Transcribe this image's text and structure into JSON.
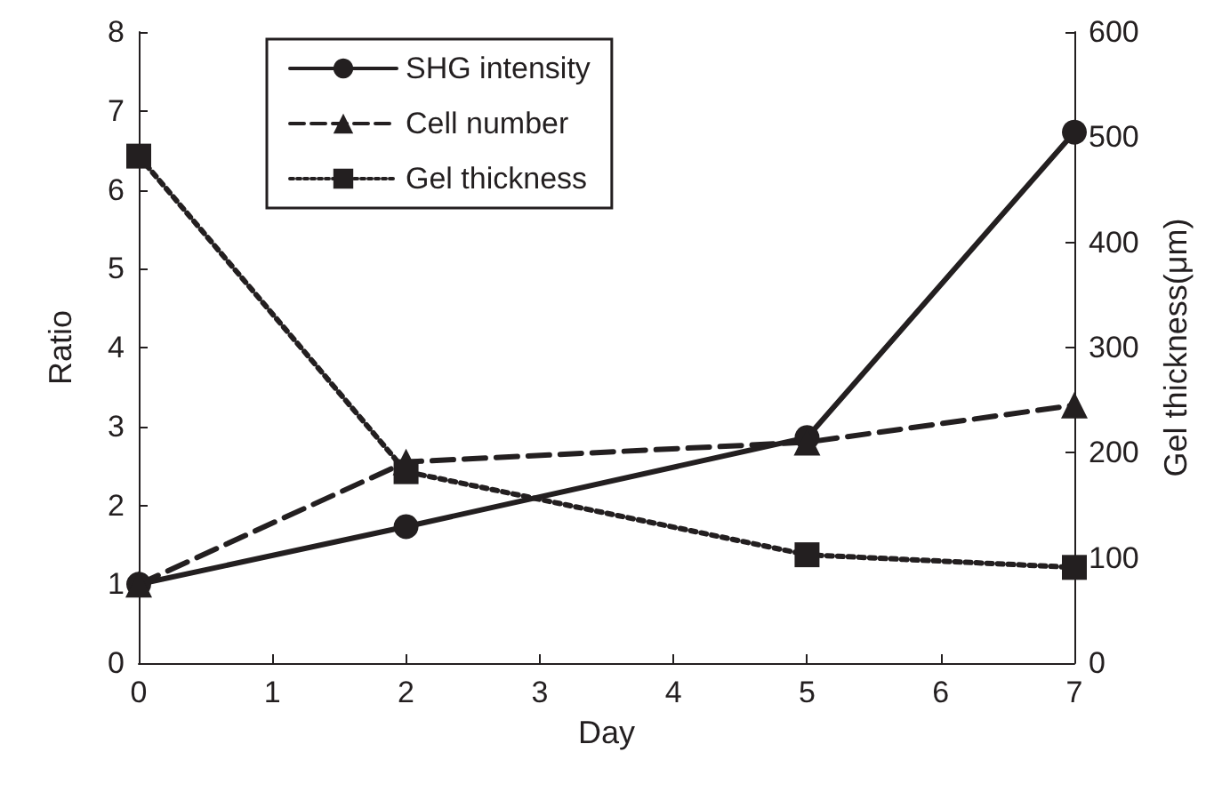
{
  "chart_data": {
    "type": "line",
    "xlabel": "Day",
    "ylabel": "Ratio",
    "y2label": "Gel thickness(μm)",
    "x": [
      0,
      2,
      5,
      7
    ],
    "xlim": [
      0,
      7
    ],
    "xticks": [
      0,
      1,
      2,
      3,
      4,
      5,
      6,
      7
    ],
    "ylim": [
      0,
      8
    ],
    "yticks": [
      0,
      1,
      2,
      3,
      4,
      5,
      6,
      7,
      8
    ],
    "y2lim": [
      0,
      600
    ],
    "y2ticks": [
      0,
      100,
      200,
      300,
      400,
      500,
      600
    ],
    "grid": false,
    "legend": "top",
    "series": [
      {
        "name": "SHG intensity",
        "color": "#231f20",
        "values": [
          1.0,
          1.73,
          2.86,
          6.73
        ],
        "marker": "circle",
        "line_style": "solid"
      },
      {
        "name": "Cell number",
        "color": "#231f20",
        "values": [
          1.0,
          2.55,
          2.8,
          3.27
        ],
        "marker": "triangle",
        "line_style": "dashed"
      },
      {
        "name": "Gel thickness",
        "color": "#231f20",
        "values": [
          482,
          182,
          103,
          91
        ],
        "marker": "square",
        "line_style": "dotted",
        "axis": "y2"
      }
    ]
  }
}
